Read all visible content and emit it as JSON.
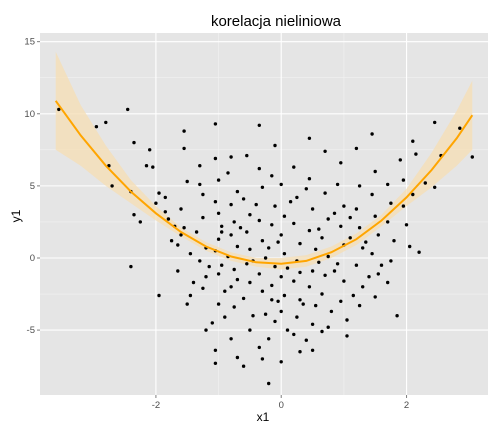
{
  "chart_data": {
    "type": "scatter",
    "title": "korelacja nieliniowa",
    "xlabel": "x1",
    "ylabel": "y1",
    "xlim": [
      -3.85,
      3.3
    ],
    "ylim": [
      -9.5,
      15.6
    ],
    "x_ticks": [
      -2,
      0,
      2
    ],
    "y_ticks": [
      -5,
      0,
      5,
      10,
      15
    ],
    "x_tick_labels": [
      "-2",
      "0",
      "2"
    ],
    "y_tick_labels": [
      "-5",
      "0",
      "5",
      "10",
      "15"
    ],
    "grid": true,
    "colors": {
      "panel": "#e5e5e5",
      "grid": "#ffffff",
      "points": "#000000",
      "fit": "#ffa500",
      "band": "#f5deb3"
    },
    "fit": {
      "type": "quadratic",
      "x": [
        -3.6,
        -3.2,
        -2.8,
        -2.4,
        -2.0,
        -1.6,
        -1.2,
        -0.8,
        -0.4,
        0.0,
        0.4,
        0.8,
        1.2,
        1.6,
        2.0,
        2.4,
        2.8,
        3.05
      ],
      "y": [
        10.9,
        8.5,
        6.4,
        4.6,
        3.1,
        1.8,
        0.8,
        0.1,
        -0.3,
        -0.4,
        -0.2,
        0.4,
        1.3,
        2.6,
        4.2,
        6.1,
        8.3,
        9.9
      ],
      "lower": [
        7.5,
        6.4,
        5.0,
        3.8,
        2.6,
        1.5,
        0.5,
        -0.2,
        -0.6,
        -0.8,
        -0.6,
        0.0,
        0.9,
        2.2,
        3.6,
        4.9,
        6.4,
        7.5
      ],
      "upper": [
        14.3,
        10.6,
        7.8,
        5.4,
        3.6,
        2.1,
        1.1,
        0.4,
        0.0,
        0.0,
        0.2,
        0.8,
        1.7,
        3.0,
        4.8,
        7.3,
        10.2,
        12.3
      ]
    },
    "series": [
      {
        "points": [
          [
            -3.55,
            10.3
          ],
          [
            -2.95,
            9.1
          ],
          [
            -2.8,
            9.4
          ],
          [
            -2.45,
            10.3
          ],
          [
            -2.35,
            8.0
          ],
          [
            -2.1,
            7.5
          ],
          [
            -2.15,
            6.4
          ],
          [
            -2.75,
            6.4
          ],
          [
            -2.7,
            5.0
          ],
          [
            -2.4,
            4.6
          ],
          [
            -2.35,
            3.0
          ],
          [
            -2.25,
            2.5
          ],
          [
            -2.4,
            -0.6
          ],
          [
            -2.0,
            3.8
          ],
          [
            -2.05,
            6.3
          ],
          [
            -1.95,
            4.5
          ],
          [
            -1.85,
            4.2
          ],
          [
            -1.85,
            3.2
          ],
          [
            -1.8,
            2.7
          ],
          [
            -1.75,
            1.2
          ],
          [
            -1.95,
            -2.6
          ],
          [
            -1.55,
            8.8
          ],
          [
            -1.55,
            7.6
          ],
          [
            -1.5,
            5.3
          ],
          [
            -1.6,
            3.4
          ],
          [
            -1.55,
            2.1
          ],
          [
            -1.6,
            1.6
          ],
          [
            -1.65,
            0.9
          ],
          [
            -1.65,
            -0.9
          ],
          [
            -1.4,
            -1.7
          ],
          [
            -1.5,
            -3.2
          ],
          [
            -1.45,
            -2.6
          ],
          [
            -1.3,
            5.1
          ],
          [
            -1.3,
            6.4
          ],
          [
            -1.25,
            2.8
          ],
          [
            -1.35,
            1.8
          ],
          [
            -1.2,
            0.7
          ],
          [
            -1.3,
            -0.2
          ],
          [
            -1.2,
            -1.3
          ],
          [
            -1.25,
            -2.1
          ],
          [
            -1.1,
            -4.5
          ],
          [
            -1.2,
            -5.0
          ],
          [
            -1.05,
            9.3
          ],
          [
            -1.05,
            6.9
          ],
          [
            -1.0,
            5.4
          ],
          [
            -1.05,
            3.9
          ],
          [
            -1.0,
            3.1
          ],
          [
            -0.95,
            2.2
          ],
          [
            -1.0,
            1.3
          ],
          [
            -1.05,
            0.5
          ],
          [
            -0.95,
            -0.5
          ],
          [
            -1.0,
            -1.1
          ],
          [
            -1.0,
            -3.2
          ],
          [
            -0.9,
            -2.3
          ],
          [
            -1.05,
            -6.4
          ],
          [
            -1.05,
            -7.3
          ],
          [
            -0.8,
            7.0
          ],
          [
            -0.85,
            5.9
          ],
          [
            -0.7,
            4.6
          ],
          [
            -0.8,
            3.7
          ],
          [
            -0.75,
            2.5
          ],
          [
            -0.8,
            1.6
          ],
          [
            -0.7,
            0.8
          ],
          [
            -0.85,
            0.1
          ],
          [
            -0.75,
            -0.8
          ],
          [
            -0.8,
            -2.0
          ],
          [
            -0.75,
            -3.4
          ],
          [
            -0.8,
            -5.6
          ],
          [
            -0.7,
            -6.9
          ],
          [
            -0.6,
            -7.5
          ],
          [
            -0.55,
            7.1
          ],
          [
            -0.6,
            4.1
          ],
          [
            -0.5,
            3.0
          ],
          [
            -0.55,
            1.8
          ],
          [
            -0.5,
            0.6
          ],
          [
            -0.55,
            -0.4
          ],
          [
            -0.5,
            -1.7
          ],
          [
            -0.6,
            -2.8
          ],
          [
            -0.45,
            -4.0
          ],
          [
            -0.5,
            -5.0
          ],
          [
            -0.35,
            9.2
          ],
          [
            -0.35,
            6.2
          ],
          [
            -0.3,
            4.9
          ],
          [
            -0.35,
            2.6
          ],
          [
            -0.3,
            1.2
          ],
          [
            -0.25,
            0.0
          ],
          [
            -0.35,
            -1.1
          ],
          [
            -0.3,
            -2.3
          ],
          [
            -0.25,
            -3.9
          ],
          [
            -0.35,
            -6.2
          ],
          [
            -0.3,
            -7.0
          ],
          [
            -0.1,
            7.8
          ],
          [
            -0.15,
            5.7
          ],
          [
            -0.1,
            3.6
          ],
          [
            -0.15,
            2.3
          ],
          [
            -0.05,
            1.1
          ],
          [
            -0.1,
            -0.6
          ],
          [
            -0.15,
            -1.9
          ],
          [
            -0.05,
            -3.0
          ],
          [
            -0.1,
            -4.4
          ],
          [
            -0.2,
            -5.6
          ],
          [
            0.0,
            5.1
          ],
          [
            0.05,
            2.9
          ],
          [
            0.0,
            1.6
          ],
          [
            0.05,
            0.3
          ],
          [
            0.0,
            -1.3
          ],
          [
            0.05,
            -2.6
          ],
          [
            0.0,
            -3.7
          ],
          [
            0.1,
            -5.0
          ],
          [
            0.0,
            -7.2
          ],
          [
            -0.2,
            -8.7
          ],
          [
            0.2,
            6.3
          ],
          [
            0.25,
            4.2
          ],
          [
            0.2,
            2.4
          ],
          [
            0.3,
            1.0
          ],
          [
            0.25,
            -0.2
          ],
          [
            0.2,
            -1.6
          ],
          [
            0.3,
            -2.9
          ],
          [
            0.25,
            -4.1
          ],
          [
            0.2,
            -5.3
          ],
          [
            0.3,
            -6.5
          ],
          [
            0.45,
            8.3
          ],
          [
            0.45,
            5.5
          ],
          [
            0.5,
            3.4
          ],
          [
            0.45,
            1.9
          ],
          [
            0.55,
            0.6
          ],
          [
            0.5,
            -0.9
          ],
          [
            0.45,
            -2.0
          ],
          [
            0.55,
            -3.3
          ],
          [
            0.5,
            -4.6
          ],
          [
            0.4,
            -5.7
          ],
          [
            0.5,
            -6.4
          ],
          [
            0.7,
            7.4
          ],
          [
            0.7,
            4.5
          ],
          [
            0.75,
            2.7
          ],
          [
            0.65,
            1.4
          ],
          [
            0.75,
            0.1
          ],
          [
            0.7,
            -1.2
          ],
          [
            0.65,
            -2.5
          ],
          [
            0.8,
            -3.7
          ],
          [
            0.75,
            -4.8
          ],
          [
            0.95,
            6.6
          ],
          [
            0.9,
            5.1
          ],
          [
            1.0,
            3.6
          ],
          [
            0.95,
            2.2
          ],
          [
            1.0,
            0.9
          ],
          [
            0.9,
            -0.4
          ],
          [
            1.0,
            -1.6
          ],
          [
            0.95,
            -3.0
          ],
          [
            1.05,
            -4.3
          ],
          [
            1.05,
            -5.4
          ],
          [
            1.2,
            7.6
          ],
          [
            1.25,
            5.0
          ],
          [
            1.2,
            3.4
          ],
          [
            1.25,
            2.1
          ],
          [
            1.3,
            0.7
          ],
          [
            1.2,
            -0.5
          ],
          [
            1.3,
            -2.0
          ],
          [
            1.25,
            -3.3
          ],
          [
            1.45,
            8.6
          ],
          [
            1.5,
            6.0
          ],
          [
            1.45,
            4.4
          ],
          [
            1.5,
            2.9
          ],
          [
            1.55,
            1.6
          ],
          [
            1.45,
            0.3
          ],
          [
            1.55,
            -1.1
          ],
          [
            1.5,
            -2.7
          ],
          [
            1.7,
            5.1
          ],
          [
            1.75,
            3.8
          ],
          [
            1.7,
            2.5
          ],
          [
            1.8,
            1.2
          ],
          [
            1.75,
            -0.2
          ],
          [
            1.7,
            -1.7
          ],
          [
            1.9,
            6.8
          ],
          [
            1.95,
            5.4
          ],
          [
            1.95,
            3.6
          ],
          [
            2.0,
            2.3
          ],
          [
            1.85,
            -4.0
          ],
          [
            2.1,
            8.1
          ],
          [
            2.15,
            7.2
          ],
          [
            2.1,
            4.4
          ],
          [
            2.05,
            0.8
          ],
          [
            2.3,
            5.2
          ],
          [
            2.2,
            0.4
          ],
          [
            2.45,
            9.4
          ],
          [
            2.55,
            7.1
          ],
          [
            2.45,
            4.9
          ],
          [
            2.85,
            9.0
          ],
          [
            3.05,
            7.0
          ],
          [
            -1.25,
            4.4
          ],
          [
            -0.65,
            2.1
          ],
          [
            0.15,
            3.9
          ],
          [
            0.6,
            2.0
          ],
          [
            1.1,
            1.4
          ],
          [
            -1.45,
            0.3
          ],
          [
            -0.2,
            0.7
          ],
          [
            0.85,
            -0.9
          ],
          [
            1.6,
            -0.5
          ],
          [
            -0.9,
            -4.1
          ],
          [
            0.35,
            -3.2
          ],
          [
            1.15,
            -2.6
          ],
          [
            -1.7,
            2.2
          ],
          [
            -0.45,
            -0.2
          ],
          [
            0.6,
            -0.3
          ],
          [
            1.35,
            1.1
          ],
          [
            -0.95,
            1.8
          ],
          [
            0.1,
            -0.7
          ],
          [
            0.85,
            3.1
          ],
          [
            -0.4,
            3.7
          ],
          [
            0.4,
            4.8
          ],
          [
            -1.15,
            -0.6
          ],
          [
            -0.7,
            -1.5
          ],
          [
            0.3,
            -1.0
          ],
          [
            1.4,
            -1.3
          ],
          [
            -0.15,
            -2.9
          ],
          [
            0.65,
            -5.1
          ],
          [
            1.1,
            2.8
          ]
        ]
      }
    ]
  }
}
